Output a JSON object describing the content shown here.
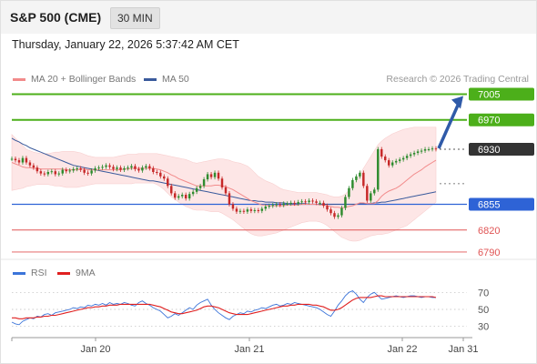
{
  "header": {
    "title": "S&P 500 (CME)",
    "interval": "30 MIN"
  },
  "timestamp": "Thursday, January 22, 2026 5:37:42 AM CET",
  "legend": {
    "ma20_label": "MA 20 + Bollinger Bands",
    "ma50_label": "MA 50",
    "research": "Research © 2026 Trading Central",
    "rsi_label": "RSI",
    "rsi_ma_label": "9MA"
  },
  "colors": {
    "resistance": "#4caf1a",
    "current": "#333333",
    "support_blue": "#2e63d6",
    "support_red": "#e05454",
    "ma20": "#f28b8b",
    "ma50": "#3a5a9c",
    "bollinger_fill": "#fde2e2",
    "candle_up": "#2e8b2e",
    "candle_down": "#c62828",
    "arrow": "#2f5aa8",
    "rsi": "#3b74d9",
    "rsi_ma": "#e02020"
  },
  "chart_data": {
    "type": "candlestick",
    "instrument": "S&P 500 (CME)",
    "interval": "30 MIN",
    "x_ticks": [
      "Jan 20",
      "Jan 21",
      "Jan 22",
      "Jan 31"
    ],
    "price_levels": [
      {
        "label": "7005",
        "value": 7005,
        "kind": "resistance"
      },
      {
        "label": "6970",
        "value": 6970,
        "kind": "resistance"
      },
      {
        "label": "6930",
        "value": 6930,
        "kind": "current"
      },
      {
        "label": "6855",
        "value": 6855,
        "kind": "support"
      },
      {
        "label": "6820",
        "value": 6820,
        "kind": "support_minor"
      },
      {
        "label": "6790",
        "value": 6790,
        "kind": "support_minor"
      }
    ],
    "ylim": [
      6785,
      7013
    ],
    "close": [
      6917,
      6915,
      6912,
      6918,
      6912,
      6908,
      6905,
      6900,
      6897,
      6896,
      6899,
      6900,
      6896,
      6897,
      6902,
      6900,
      6901,
      6903,
      6904,
      6902,
      6898,
      6897,
      6901,
      6904,
      6905,
      6906,
      6908,
      6906,
      6903,
      6905,
      6902,
      6904,
      6905,
      6907,
      6903,
      6901,
      6905,
      6907,
      6904,
      6899,
      6898,
      6893,
      6890,
      6880,
      6870,
      6864,
      6866,
      6868,
      6863,
      6869,
      6872,
      6877,
      6880,
      6889,
      6896,
      6892,
      6898,
      6890,
      6878,
      6870,
      6855,
      6849,
      6845,
      6846,
      6845,
      6848,
      6846,
      6847,
      6846,
      6849,
      6852,
      6853,
      6854,
      6855,
      6854,
      6856,
      6856,
      6857,
      6856,
      6858,
      6859,
      6858,
      6860,
      6859,
      6857,
      6857,
      6853,
      6848,
      6843,
      6838,
      6840,
      6850,
      6865,
      6877,
      6888,
      6893,
      6898,
      6880,
      6860,
      6870,
      6875,
      6930,
      6920,
      6915,
      6908,
      6912,
      6914,
      6916,
      6918,
      6921,
      6923,
      6925,
      6927,
      6928,
      6930,
      6930,
      6931,
      6930
    ],
    "ma20": [
      6912,
      6910,
      6908,
      6906,
      6905,
      6905,
      6904,
      6904,
      6903,
      6903,
      6903,
      6903,
      6903,
      6903,
      6903,
      6902,
      6902,
      6902,
      6902,
      6903,
      6903,
      6902,
      6902,
      6902,
      6902,
      6902,
      6902,
      6902,
      6902,
      6902,
      6902,
      6903,
      6903,
      6904,
      6904,
      6904,
      6904,
      6904,
      6904,
      6904,
      6903,
      6902,
      6900,
      6898,
      6895,
      6893,
      6890,
      6888,
      6886,
      6884,
      6882,
      6880,
      6880,
      6880,
      6880,
      6880,
      6881,
      6881,
      6880,
      6879,
      6877,
      6875,
      6872,
      6869,
      6866,
      6863,
      6860,
      6858,
      6856,
      6854,
      6854,
      6853,
      6853,
      6853,
      6853,
      6853,
      6854,
      6854,
      6854,
      6854,
      6855,
      6855,
      6855,
      6855,
      6855,
      6854,
      6854,
      6853,
      6852,
      6851,
      6851,
      6850,
      6851,
      6852,
      6853,
      6855,
      6857,
      6857,
      6856,
      6856,
      6856,
      6860,
      6866,
      6870,
      6873,
      6875,
      6877,
      6880,
      6884,
      6888,
      6892,
      6896,
      6899,
      6902,
      6906,
      6909,
      6912,
      6915
    ],
    "bb_upper": [
      6950,
      6945,
      6940,
      6935,
      6930,
      6928,
      6926,
      6925,
      6924,
      6924,
      6924,
      6925,
      6926,
      6926,
      6927,
      6927,
      6927,
      6927,
      6926,
      6925,
      6923,
      6921,
      6920,
      6919,
      6919,
      6919,
      6919,
      6919,
      6919,
      6920,
      6921,
      6922,
      6923,
      6923,
      6923,
      6924,
      6924,
      6924,
      6924,
      6924,
      6924,
      6923,
      6922,
      6921,
      6920,
      6919,
      6918,
      6917,
      6916,
      6914,
      6912,
      6911,
      6912,
      6913,
      6914,
      6915,
      6916,
      6917,
      6917,
      6916,
      6915,
      6913,
      6912,
      6911,
      6909,
      6907,
      6903,
      6898,
      6893,
      6890,
      6887,
      6885,
      6883,
      6880,
      6877,
      6875,
      6874,
      6873,
      6872,
      6871,
      6871,
      6871,
      6871,
      6871,
      6871,
      6870,
      6869,
      6868,
      6866,
      6865,
      6865,
      6866,
      6869,
      6874,
      6880,
      6888,
      6896,
      6904,
      6912,
      6920,
      6928,
      6936,
      6941,
      6945,
      6948,
      6951,
      6953,
      6955,
      6957,
      6958,
      6959,
      6960,
      6960,
      6960,
      6960,
      6960,
      6960,
      6960
    ],
    "bb_lower": [
      6874,
      6875,
      6876,
      6877,
      6879,
      6880,
      6881,
      6882,
      6882,
      6882,
      6882,
      6881,
      6880,
      6880,
      6879,
      6878,
      6878,
      6878,
      6878,
      6879,
      6880,
      6881,
      6882,
      6883,
      6883,
      6883,
      6883,
      6883,
      6883,
      6883,
      6883,
      6883,
      6883,
      6883,
      6884,
      6884,
      6884,
      6884,
      6884,
      6884,
      6882,
      6879,
      6875,
      6870,
      6865,
      6862,
      6858,
      6855,
      6852,
      6850,
      6848,
      6847,
      6847,
      6847,
      6846,
      6845,
      6845,
      6845,
      6843,
      6840,
      6837,
      6834,
      6830,
      6826,
      6822,
      6818,
      6815,
      6813,
      6812,
      6812,
      6813,
      6814,
      6815,
      6816,
      6818,
      6820,
      6822,
      6824,
      6826,
      6828,
      6830,
      6831,
      6832,
      6832,
      6832,
      6831,
      6829,
      6826,
      6822,
      6818,
      6814,
      6810,
      6808,
      6806,
      6805,
      6805,
      6806,
      6808,
      6810,
      6812,
      6813,
      6814,
      6814,
      6815,
      6816,
      6818,
      6820,
      6822,
      6824,
      6826,
      6830,
      6834,
      6838,
      6842,
      6846,
      6850,
      6854,
      6858
    ],
    "ma50": [
      6945,
      6942,
      6940,
      6937,
      6935,
      6932,
      6930,
      6928,
      6926,
      6924,
      6922,
      6920,
      6918,
      6916,
      6914,
      6912,
      6910,
      6908,
      6907,
      6906,
      6905,
      6904,
      6903,
      6902,
      6901,
      6900,
      6899,
      6898,
      6897,
      6896,
      6895,
      6894,
      6893,
      6892,
      6891,
      6890,
      6889,
      6888,
      6887,
      6887,
      6886,
      6885,
      6884,
      6883,
      6882,
      6881,
      6880,
      6879,
      6878,
      6877,
      6876,
      6875,
      6874,
      6873,
      6872,
      6871,
      6870,
      6869,
      6868,
      6867,
      6866,
      6865,
      6864,
      6863,
      6862,
      6861,
      6860,
      6860,
      6859,
      6859,
      6858,
      6858,
      6858,
      6857,
      6857,
      6857,
      6856,
      6856,
      6856,
      6856,
      6856,
      6856,
      6855,
      6855,
      6855,
      6855,
      6855,
      6855,
      6855,
      6855,
      6855,
      6855,
      6855,
      6855,
      6855,
      6855,
      6856,
      6856,
      6856,
      6856,
      6857,
      6857,
      6858,
      6858,
      6859,
      6860,
      6861,
      6862,
      6863,
      6864,
      6865,
      6866,
      6867,
      6868,
      6869,
      6870,
      6871,
      6872
    ],
    "projection": {
      "from": 6930,
      "to": 7005
    },
    "rsi": {
      "ylim": [
        20,
        80
      ],
      "ticks": [
        30,
        50,
        70
      ],
      "values": [
        35,
        33,
        32,
        36,
        38,
        40,
        39,
        42,
        41,
        44,
        45,
        43,
        46,
        47,
        48,
        49,
        50,
        52,
        51,
        53,
        52,
        55,
        54,
        56,
        55,
        57,
        55,
        58,
        56,
        57,
        56,
        58,
        57,
        55,
        54,
        58,
        60,
        57,
        55,
        52,
        50,
        48,
        44,
        40,
        42,
        45,
        43,
        46,
        49,
        52,
        50,
        55,
        58,
        60,
        62,
        55,
        50,
        46,
        43,
        40,
        38,
        42,
        44,
        46,
        45,
        48,
        47,
        49,
        50,
        52,
        51,
        53,
        55,
        56,
        54,
        55,
        57,
        56,
        58,
        57,
        56,
        55,
        54,
        53,
        52,
        50,
        47,
        44,
        42,
        48,
        55,
        60,
        66,
        70,
        72,
        68,
        62,
        58,
        64,
        68,
        70,
        66,
        62,
        63,
        64,
        65,
        66,
        65,
        64,
        65,
        66,
        66,
        65,
        64,
        65,
        65,
        64,
        64
      ],
      "ma": [
        40,
        40,
        39,
        39,
        40,
        40,
        40,
        41,
        41,
        42,
        42,
        43,
        43,
        44,
        45,
        46,
        47,
        48,
        49,
        50,
        51,
        52,
        52,
        53,
        53,
        54,
        54,
        55,
        55,
        55,
        56,
        56,
        56,
        56,
        56,
        56,
        56,
        56,
        56,
        55,
        54,
        53,
        51,
        49,
        47,
        46,
        45,
        45,
        46,
        47,
        48,
        49,
        51,
        53,
        54,
        54,
        53,
        52,
        50,
        48,
        46,
        45,
        44,
        44,
        44,
        44,
        45,
        46,
        47,
        48,
        49,
        50,
        51,
        52,
        53,
        54,
        54,
        55,
        55,
        56,
        56,
        56,
        56,
        55,
        55,
        54,
        53,
        51,
        49,
        49,
        50,
        52,
        55,
        58,
        61,
        63,
        64,
        64,
        64,
        64,
        65,
        66,
        66,
        65,
        65,
        65,
        65,
        65,
        65,
        65,
        65,
        65,
        65,
        65,
        65,
        65,
        65,
        64
      ]
    }
  }
}
